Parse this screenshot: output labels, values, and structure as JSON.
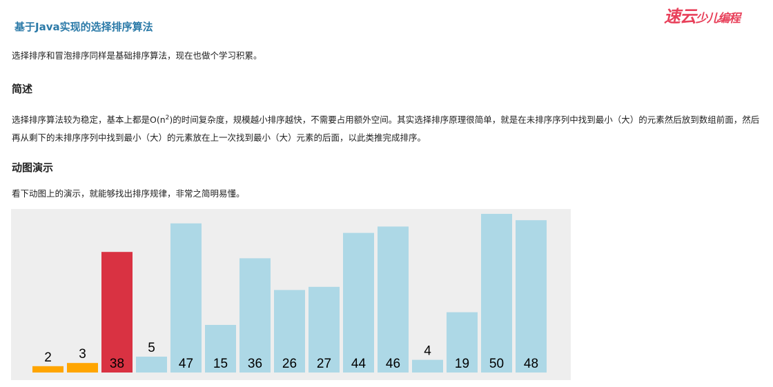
{
  "article": {
    "title": "基于Java实现的选择排序算法",
    "logo": "速云少儿编程",
    "intro": "选择排序和冒泡排序同样是基础排序算法，现在也做个学习积累。",
    "section1_heading": "简述",
    "section1_text_a": "选择排序算法较为稳定，基本上都是O(n",
    "section1_sup": "2",
    "section1_text_b": ")的时间复杂度，规模越小排序越快，不需要占用额外空间。其实选择排序原理很简单，就是在未排序序列中找到最小（大）的元素然后放到数组前面，然后再从剩下的未排序序列中找到最小（大）的元素放在上一次找到最小（大）元素的后面，以此类推完成排序。",
    "section2_heading": "动图演示",
    "section2_text": "看下动图上的演示，就能够找出排序规律，非常之简明易懂。"
  },
  "chart_data": {
    "type": "bar",
    "values": [
      2,
      3,
      38,
      5,
      47,
      15,
      36,
      26,
      27,
      44,
      46,
      4,
      19,
      50,
      48
    ],
    "states": [
      "sorted",
      "sorted",
      "current",
      "unsorted",
      "unsorted",
      "unsorted",
      "unsorted",
      "unsorted",
      "unsorted",
      "unsorted",
      "unsorted",
      "unsorted",
      "unsorted",
      "unsorted",
      "unsorted"
    ],
    "ylim": [
      0,
      50
    ],
    "colors": {
      "sorted": "#ffa500",
      "current": "#d93242",
      "unsorted": "#add8e6",
      "background": "#eeeeee"
    }
  }
}
